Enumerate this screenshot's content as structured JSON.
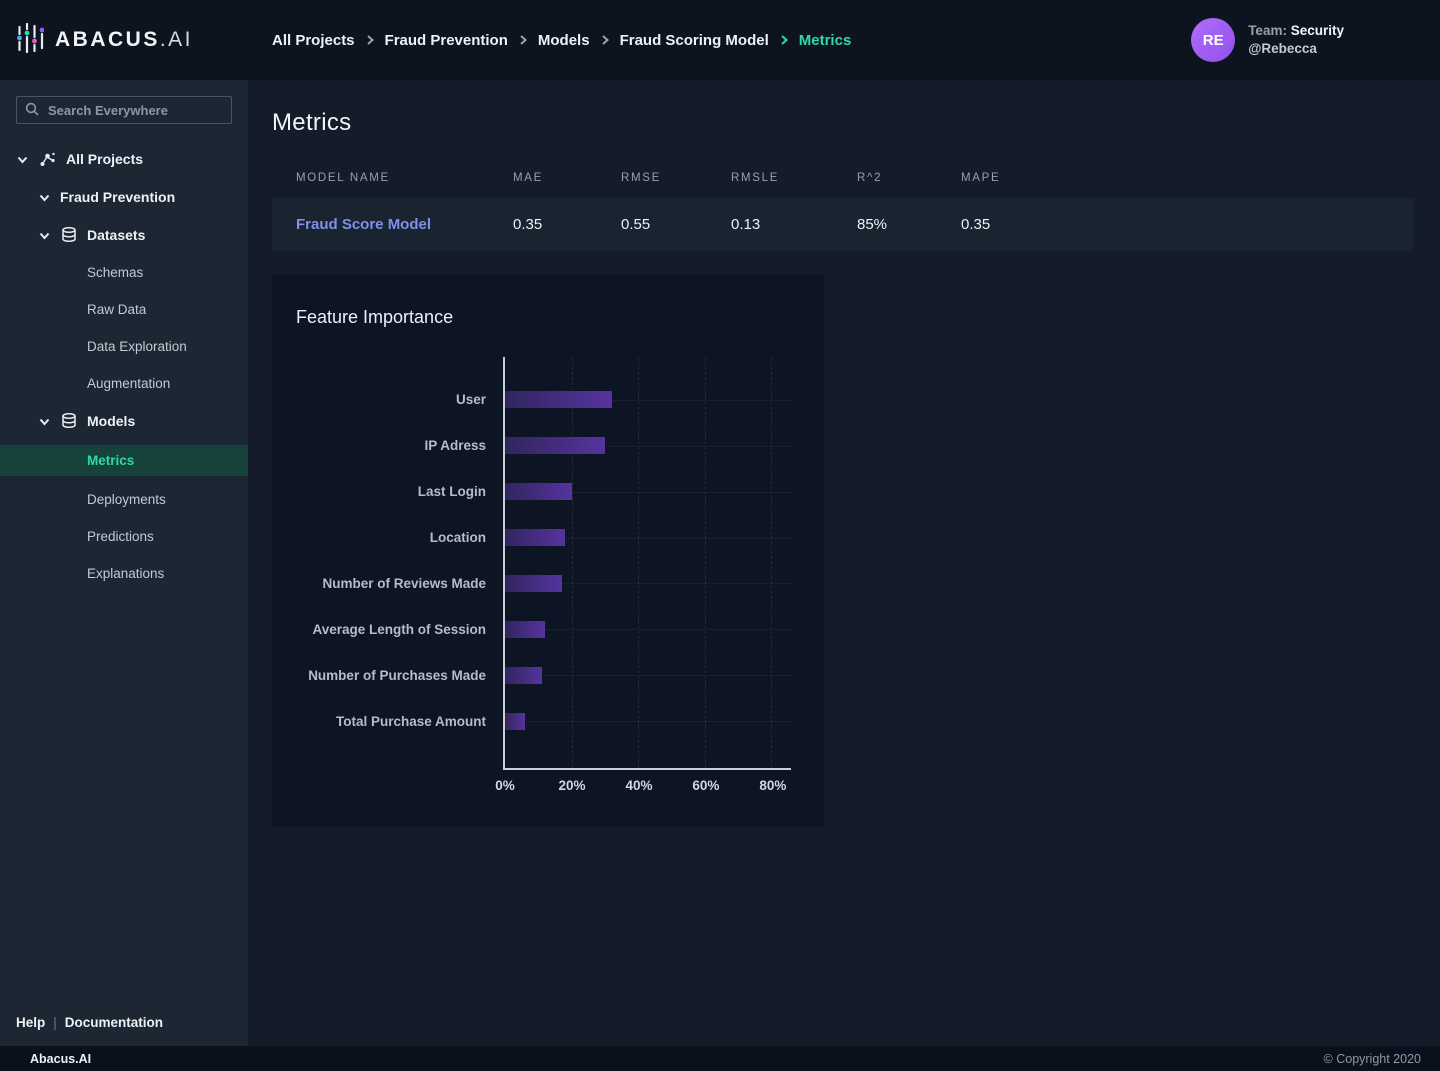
{
  "brand": {
    "name_bold": "ABACUS",
    "name_light": ".AI"
  },
  "topbar": {
    "breadcrumb": [
      {
        "label": "All Projects"
      },
      {
        "label": "Fraud Prevention"
      },
      {
        "label": "Models"
      },
      {
        "label": "Fraud Scoring Model"
      },
      {
        "label": "Metrics"
      }
    ],
    "user": {
      "initials": "RE",
      "team_label": "Team:",
      "team_name": "Security",
      "handle": "@Rebecca"
    }
  },
  "sidebar": {
    "search_placeholder": "Search Everywhere",
    "items": [
      {
        "label": "All Projects"
      },
      {
        "label": "Fraud Prevention"
      },
      {
        "label": "Datasets"
      },
      {
        "label": "Schemas"
      },
      {
        "label": "Raw Data"
      },
      {
        "label": "Data Exploration"
      },
      {
        "label": "Augmentation"
      },
      {
        "label": "Models"
      },
      {
        "label": "Metrics"
      },
      {
        "label": "Deployments"
      },
      {
        "label": "Predictions"
      },
      {
        "label": "Explanations"
      }
    ],
    "footer_links": [
      {
        "label": "Help"
      },
      {
        "label": "Documentation"
      }
    ]
  },
  "page": {
    "title": "Metrics"
  },
  "metrics_table": {
    "headers": [
      "MODEL NAME",
      "MAE",
      "RMSE",
      "RMSLE",
      "R^2",
      "MAPE"
    ],
    "rows": [
      {
        "model_name": "Fraud Score Model",
        "mae": "0.35",
        "rmse": "0.55",
        "rmsle": "0.13",
        "r2": "85%",
        "mape": "0.35"
      }
    ]
  },
  "chart_data": {
    "type": "bar",
    "orientation": "horizontal",
    "title": "Feature Importance",
    "categories": [
      "User",
      "IP Adress",
      "Last Login",
      "Location",
      "Number of Reviews Made",
      "Average Length of Session",
      "Number of Purchases Made",
      "Total Purchase Amount"
    ],
    "values": [
      32,
      30,
      20,
      18,
      17,
      12,
      11,
      6
    ],
    "unit": "%",
    "xlabel": "",
    "ylabel": "",
    "xlim": [
      0,
      86
    ],
    "xticks": [
      0,
      20,
      40,
      60,
      80
    ],
    "tick_suffix": "%",
    "grid": true,
    "legend": false,
    "bar_color_start": "#31255e",
    "bar_color_end": "#56339f"
  },
  "colors": {
    "accent_teal": "#2fd9a6",
    "link_blue": "#7e90ea",
    "avatar_purple": "#a761f3"
  },
  "footer": {
    "brand": "Abacus.AI",
    "copyright": "© Copyright 2020"
  }
}
